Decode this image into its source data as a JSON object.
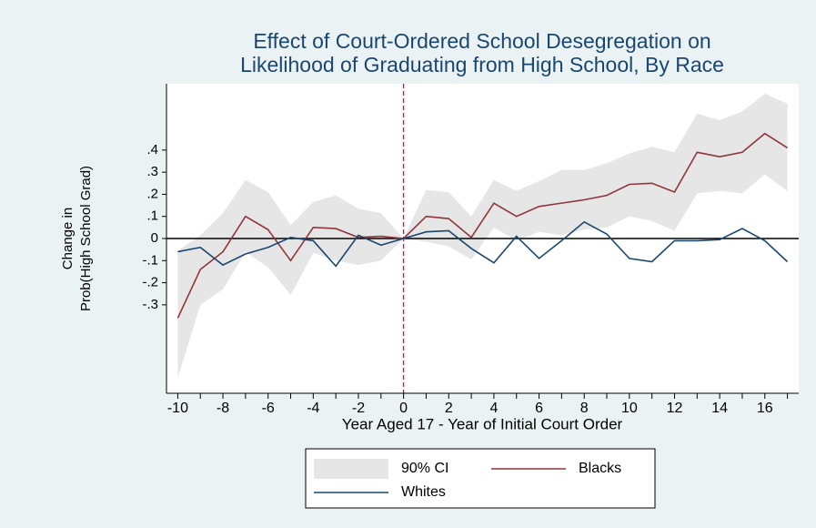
{
  "chart_data": {
    "type": "line",
    "title": [
      "Effect of Court-Ordered School Desegregation on",
      "Likelihood of Graduating from High School, By Race"
    ],
    "x_label": "Year Aged 17 - Year of Initial Court Order",
    "y_label": [
      "Change in",
      "Prob(High School Grad)"
    ],
    "x": [
      -10,
      -9,
      -8,
      -7,
      -6,
      -5,
      -4,
      -3,
      -2,
      -1,
      0,
      1,
      2,
      3,
      4,
      5,
      6,
      7,
      8,
      9,
      10,
      11,
      12,
      13,
      14,
      15,
      16,
      17
    ],
    "series": [
      {
        "name": "90% CI",
        "color": "#e6e6e6",
        "lower": [
          -0.63,
          -0.3,
          -0.23,
          -0.06,
          -0.13,
          -0.255,
          -0.065,
          -0.1,
          -0.12,
          -0.1,
          0,
          -0.015,
          -0.035,
          -0.095,
          0.05,
          -0.01,
          0.03,
          0.015,
          0.04,
          0.05,
          0.1,
          0.08,
          0.035,
          0.205,
          0.215,
          0.205,
          0.29,
          0.215
        ],
        "upper": [
          -0.055,
          0.015,
          0.115,
          0.265,
          0.21,
          0.06,
          0.165,
          0.195,
          0.135,
          0.115,
          0,
          0.22,
          0.21,
          0.1,
          0.265,
          0.215,
          0.26,
          0.31,
          0.31,
          0.34,
          0.385,
          0.415,
          0.39,
          0.565,
          0.535,
          0.575,
          0.655,
          0.61
        ]
      },
      {
        "name": "Blacks",
        "color": "#90353b",
        "values": [
          -0.36,
          -0.14,
          -0.06,
          0.1,
          0.04,
          -0.1,
          0.05,
          0.045,
          0.005,
          0.01,
          0,
          0.1,
          0.09,
          0.005,
          0.16,
          0.1,
          0.145,
          0.16,
          0.175,
          0.195,
          0.245,
          0.25,
          0.21,
          0.39,
          0.37,
          0.39,
          0.475,
          0.41
        ]
      },
      {
        "name": "Whites",
        "color": "#1a476f",
        "values": [
          -0.06,
          -0.04,
          -0.12,
          -0.07,
          -0.04,
          0.005,
          -0.01,
          -0.125,
          0.015,
          -0.03,
          0,
          0.03,
          0.035,
          -0.045,
          -0.11,
          0.01,
          -0.09,
          -0.01,
          0.075,
          0.02,
          -0.09,
          -0.105,
          -0.01,
          -0.01,
          -0.005,
          0.045,
          -0.01,
          -0.105
        ]
      }
    ],
    "xlim": [
      -10.5,
      17.5
    ],
    "ylim": [
      -0.7,
      0.7
    ],
    "xticks": [
      -10,
      -8,
      -6,
      -4,
      -2,
      0,
      2,
      4,
      6,
      8,
      10,
      12,
      14,
      16
    ],
    "xticks_minor": [
      -9,
      -7,
      -5,
      -3,
      -1,
      1,
      3,
      5,
      7,
      9,
      11,
      13,
      15,
      17
    ],
    "yticks": [
      {
        "value": 0.4,
        "label": ".4"
      },
      {
        "value": 0.3,
        "label": ".3"
      },
      {
        "value": 0.2,
        "label": ".2"
      },
      {
        "value": 0.1,
        "label": ".1"
      },
      0,
      {
        "value": -0.1,
        "label": "-.1"
      },
      {
        "value": -0.2,
        "label": "-.2"
      },
      {
        "value": -0.3,
        "label": "-.3"
      }
    ],
    "xline": 0,
    "xline_color": "#b22234",
    "yline": 0,
    "yline_color": "#000000"
  }
}
